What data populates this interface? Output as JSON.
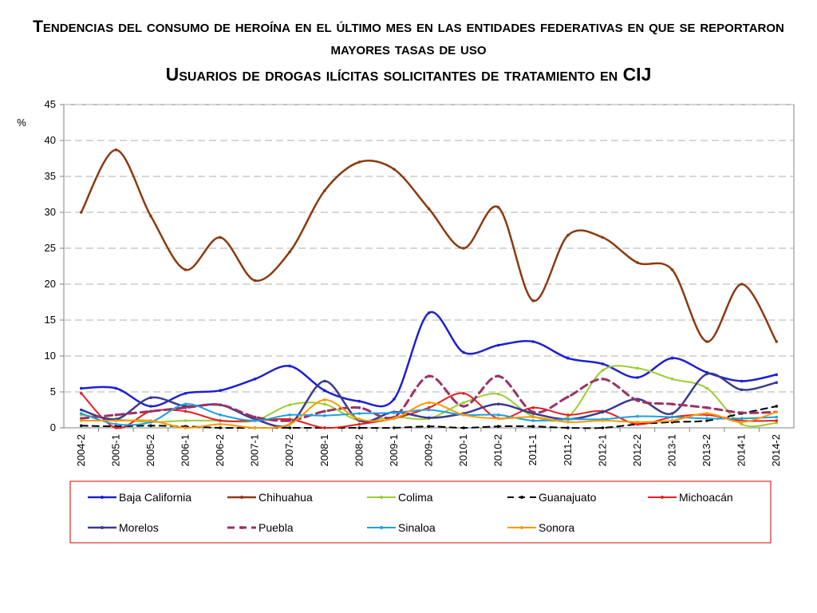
{
  "title_line1": "Tendencias del consumo de heroína en el último mes en las entidades federativas en que se reportaron mayores tasas de uso",
  "title_line2": "Usuarios de drogas ilícitas solicitantes de tratamiento en CIJ",
  "chart_data": {
    "type": "line",
    "ylabel": "%",
    "ylim": [
      0,
      45
    ],
    "yticks": [
      0,
      5,
      10,
      15,
      20,
      25,
      30,
      35,
      40,
      45
    ],
    "grid": true,
    "legend_position": "bottom",
    "categories": [
      "2004-2",
      "2005-1",
      "2005-2",
      "2006-1",
      "2006-2",
      "2007-1",
      "2007-2",
      "2008-1",
      "2008-2",
      "2009-1",
      "2009-2",
      "2010-1",
      "2010-2",
      "2011-1",
      "2011-2",
      "2012-1",
      "2012-2",
      "2013-1",
      "2013-2",
      "2014-1",
      "2014-2"
    ],
    "series": [
      {
        "name": "Baja California",
        "color": "#1f1fd0",
        "dash": "solid",
        "width": 2.5,
        "values": [
          5.5,
          5.5,
          3.0,
          4.8,
          5.2,
          6.8,
          8.6,
          5.2,
          3.7,
          4.0,
          16.0,
          10.5,
          11.5,
          12.0,
          9.7,
          8.9,
          7.0,
          9.7,
          7.7,
          6.5,
          7.4
        ]
      },
      {
        "name": "Chihuahua",
        "color": "#8b3a10",
        "dash": "solid",
        "width": 2.5,
        "values": [
          30.0,
          38.7,
          29.5,
          22.0,
          26.5,
          20.5,
          24.5,
          33.0,
          37.0,
          36.0,
          30.5,
          25.0,
          30.7,
          17.7,
          26.8,
          26.5,
          23.0,
          22.0,
          12.0,
          20.0,
          12.0
        ]
      },
      {
        "name": "Colima",
        "color": "#9acd32",
        "dash": "solid",
        "width": 2,
        "values": [
          1.8,
          1.2,
          0.8,
          1.0,
          1.0,
          1.0,
          3.2,
          3.3,
          1.0,
          1.5,
          1.3,
          3.5,
          4.7,
          1.6,
          1.5,
          8.0,
          8.3,
          6.8,
          5.5,
          0.5,
          0.7
        ]
      },
      {
        "name": "Guanajuato",
        "color": "#000000",
        "dash": "8,6",
        "width": 2,
        "values": [
          0.3,
          0.2,
          0.3,
          0.2,
          0.0,
          0.0,
          0.0,
          0.0,
          0.0,
          0.0,
          0.2,
          0.0,
          0.2,
          0.2,
          0.0,
          0.0,
          0.5,
          0.8,
          1.0,
          2.0,
          3.0
        ]
      },
      {
        "name": "Michoacán",
        "color": "#e81e1e",
        "dash": "solid",
        "width": 2,
        "values": [
          4.8,
          0.0,
          2.3,
          2.3,
          1.0,
          1.0,
          1.2,
          0.0,
          0.5,
          1.3,
          2.8,
          4.8,
          1.3,
          2.8,
          1.8,
          2.3,
          0.5,
          1.5,
          1.8,
          1.0,
          1.0
        ]
      },
      {
        "name": "Morelos",
        "color": "#3a3a90",
        "dash": "solid",
        "width": 2.5,
        "values": [
          2.5,
          1.2,
          4.2,
          3.0,
          3.2,
          1.2,
          0.5,
          6.5,
          1.0,
          2.2,
          1.4,
          2.0,
          3.3,
          2.0,
          1.2,
          2.2,
          4.0,
          2.0,
          7.5,
          5.3,
          6.3
        ]
      },
      {
        "name": "Puebla",
        "color": "#993366",
        "dash": "9,6",
        "width": 3,
        "values": [
          1.3,
          1.8,
          2.3,
          2.8,
          3.2,
          1.5,
          1.0,
          2.3,
          2.8,
          1.5,
          7.2,
          3.0,
          7.2,
          2.2,
          4.3,
          6.8,
          3.8,
          3.3,
          2.8,
          2.1,
          2.2
        ]
      },
      {
        "name": "Sinaloa",
        "color": "#1ea0e0",
        "dash": "solid",
        "width": 2,
        "values": [
          2.0,
          0.5,
          0.8,
          3.3,
          1.8,
          1.0,
          1.8,
          1.7,
          2.0,
          2.1,
          2.5,
          1.8,
          1.8,
          1.0,
          1.2,
          1.2,
          1.6,
          1.5,
          1.3,
          1.3,
          1.5
        ]
      },
      {
        "name": "Sonora",
        "color": "#ff9900",
        "dash": "solid",
        "width": 2,
        "values": [
          1.0,
          1.0,
          1.0,
          0.0,
          0.5,
          0.0,
          0.5,
          3.9,
          1.2,
          1.3,
          3.5,
          1.8,
          1.3,
          1.5,
          0.8,
          1.0,
          0.8,
          1.0,
          2.0,
          0.8,
          2.2
        ]
      }
    ]
  }
}
